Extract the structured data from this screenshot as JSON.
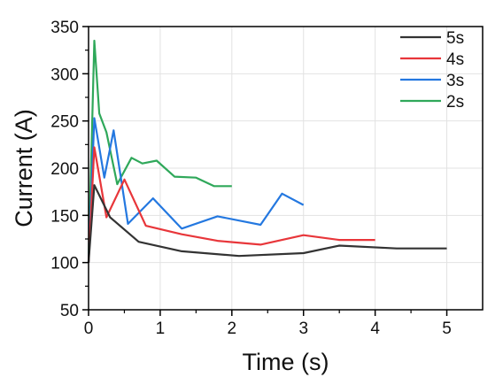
{
  "chart_data": {
    "type": "line",
    "xlabel": "Time (s)",
    "ylabel": "Current (A)",
    "xlim": [
      0,
      5.5
    ],
    "ylim": [
      50,
      350
    ],
    "xticks": [
      0,
      1,
      2,
      3,
      4,
      5
    ],
    "yticks": [
      50,
      100,
      150,
      200,
      250,
      300,
      350
    ],
    "grid": true,
    "legend_position": "top-right",
    "series": [
      {
        "name": "5s",
        "color": "#333333",
        "points": [
          [
            0,
            100
          ],
          [
            0.08,
            182
          ],
          [
            0.3,
            148
          ],
          [
            0.7,
            122
          ],
          [
            1.3,
            112
          ],
          [
            2.1,
            107
          ],
          [
            3.0,
            110
          ],
          [
            3.5,
            118
          ],
          [
            4.3,
            115
          ],
          [
            5.0,
            115
          ]
        ]
      },
      {
        "name": "4s",
        "color": "#e8363a",
        "points": [
          [
            0,
            100
          ],
          [
            0.08,
            222
          ],
          [
            0.25,
            148
          ],
          [
            0.5,
            188
          ],
          [
            0.8,
            139
          ],
          [
            1.3,
            130
          ],
          [
            1.8,
            123
          ],
          [
            2.4,
            119
          ],
          [
            3.0,
            129
          ],
          [
            3.5,
            124
          ],
          [
            4.0,
            124
          ]
        ]
      },
      {
        "name": "3s",
        "color": "#2478e0",
        "points": [
          [
            0,
            100
          ],
          [
            0.08,
            253
          ],
          [
            0.22,
            190
          ],
          [
            0.35,
            240
          ],
          [
            0.55,
            141
          ],
          [
            0.9,
            168
          ],
          [
            1.3,
            136
          ],
          [
            1.8,
            149
          ],
          [
            2.4,
            140
          ],
          [
            2.7,
            173
          ],
          [
            3.0,
            161
          ]
        ]
      },
      {
        "name": "2s",
        "color": "#2fa85a",
        "points": [
          [
            0,
            100
          ],
          [
            0.08,
            335
          ],
          [
            0.15,
            258
          ],
          [
            0.25,
            238
          ],
          [
            0.4,
            183
          ],
          [
            0.6,
            211
          ],
          [
            0.75,
            205
          ],
          [
            0.95,
            208
          ],
          [
            1.2,
            191
          ],
          [
            1.5,
            190
          ],
          [
            1.75,
            181
          ],
          [
            2.0,
            181
          ]
        ]
      }
    ]
  }
}
